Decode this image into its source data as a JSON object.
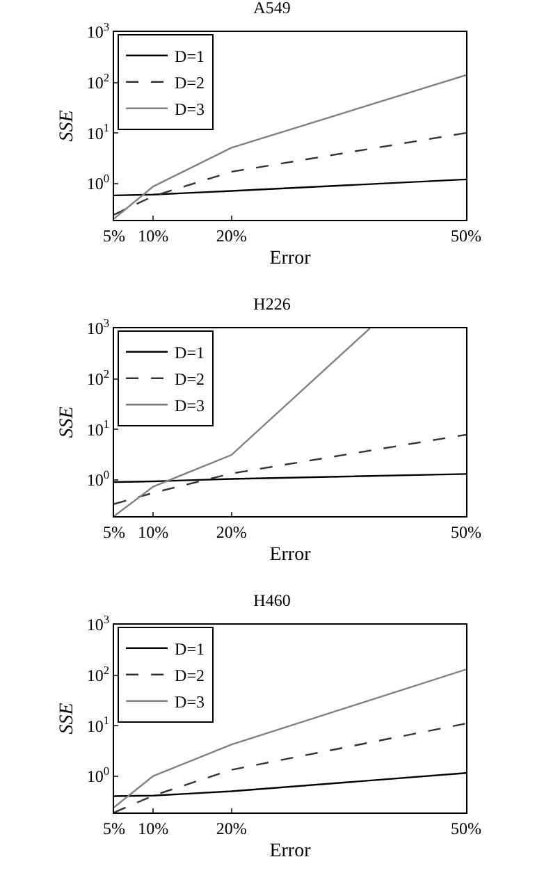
{
  "chart_data": [
    {
      "type": "line",
      "title": "A549",
      "xlabel": "Error",
      "ylabel": "SSE",
      "x": [
        5,
        10,
        20,
        50
      ],
      "log": "y",
      "grid": false,
      "legend": "top left",
      "xlim": [
        5,
        50
      ],
      "xticks": [
        {
          "value": 5,
          "label": "5%"
        },
        {
          "value": 10,
          "label": "10%"
        },
        {
          "value": 20,
          "label": "20%"
        },
        {
          "value": 50,
          "label": "50%"
        }
      ],
      "ylim": [
        0.19,
        1000
      ],
      "yticks": [
        {
          "value": 1,
          "label": "10$^{0}$"
        },
        {
          "value": 10,
          "label": "10$^{1}$"
        },
        {
          "value": 100,
          "label": "10$^{2}$"
        },
        {
          "value": 1000,
          "label": "10$^{3}$"
        }
      ],
      "series": [
        {
          "name": "D=1",
          "color": "#000000",
          "line_style": "solid",
          "values": [
            0.58,
            0.6,
            0.71,
            1.2
          ]
        },
        {
          "name": "D=2",
          "color": "#333333",
          "line_style": "dashed",
          "values": [
            0.24,
            0.56,
            1.7,
            10
          ]
        },
        {
          "name": "D=3",
          "color": "#808080",
          "line_style": "solid",
          "values": [
            0.2,
            0.87,
            5.1,
            140
          ]
        }
      ]
    },
    {
      "type": "line",
      "title": "H226",
      "xlabel": "Error",
      "ylabel": "SSE",
      "x": [
        5,
        10,
        20,
        50
      ],
      "log": "y",
      "grid": false,
      "legend": "top left",
      "xlim": [
        5,
        50
      ],
      "xticks": [
        {
          "value": 5,
          "label": "5%"
        },
        {
          "value": 10,
          "label": "10%"
        },
        {
          "value": 20,
          "label": "20%"
        },
        {
          "value": 50,
          "label": "50%"
        }
      ],
      "ylim": [
        0.19,
        1000
      ],
      "yticks": [
        {
          "value": 1,
          "label": "10$^{0}$"
        },
        {
          "value": 10,
          "label": "10$^{1}$"
        },
        {
          "value": 100,
          "label": "10$^{2}$"
        },
        {
          "value": 1000,
          "label": "10$^{3}$"
        }
      ],
      "series": [
        {
          "name": "D=1",
          "color": "#000000",
          "line_style": "solid",
          "values": [
            0.9,
            0.93,
            1.04,
            1.3
          ]
        },
        {
          "name": "D=2",
          "color": "#333333",
          "line_style": "dashed",
          "values": [
            0.33,
            0.55,
            1.33,
            7.8
          ]
        },
        {
          "name": "D=3",
          "color": "#808080",
          "line_style": "solid",
          "x": [
            5,
            10,
            20,
            37.7
          ],
          "values": [
            0.19,
            0.73,
            3.1,
            1000
          ]
        }
      ]
    },
    {
      "type": "line",
      "title": "H460",
      "xlabel": "Error",
      "ylabel": "SSE",
      "x": [
        5,
        10,
        20,
        50
      ],
      "log": "y",
      "grid": false,
      "legend": "top left",
      "xlim": [
        5,
        50
      ],
      "xticks": [
        {
          "value": 5,
          "label": "5%"
        },
        {
          "value": 10,
          "label": "10%"
        },
        {
          "value": 20,
          "label": "20%"
        },
        {
          "value": 50,
          "label": "50%"
        }
      ],
      "ylim": [
        0.19,
        1000
      ],
      "yticks": [
        {
          "value": 1,
          "label": "10$^{0}$"
        },
        {
          "value": 10,
          "label": "10$^{1}$"
        },
        {
          "value": 100,
          "label": "10$^{2}$"
        },
        {
          "value": 1000,
          "label": "10$^{3}$"
        }
      ],
      "series": [
        {
          "name": "D=1",
          "color": "#000000",
          "line_style": "solid",
          "values": [
            0.4,
            0.41,
            0.5,
            1.15
          ]
        },
        {
          "name": "D=2",
          "color": "#333333",
          "line_style": "dashed",
          "values": [
            0.19,
            0.41,
            1.33,
            11
          ]
        },
        {
          "name": "D=3",
          "color": "#808080",
          "line_style": "solid",
          "values": [
            0.24,
            1.0,
            4.2,
            130
          ]
        }
      ]
    }
  ]
}
